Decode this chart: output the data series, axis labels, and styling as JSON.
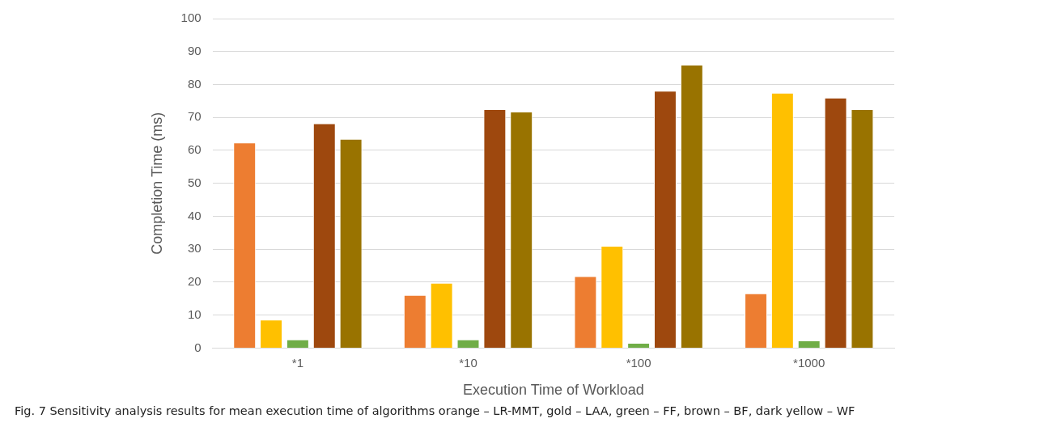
{
  "chart_data": {
    "type": "bar",
    "categories": [
      "*1",
      "*10",
      "*100",
      "*1000"
    ],
    "series": [
      {
        "color": "#ed7d31",
        "values": [
          62.4,
          16.1,
          21.8,
          16.6
        ]
      },
      {
        "color": "#ffc000",
        "values": [
          8.6,
          19.8,
          31.0,
          77.5
        ]
      },
      {
        "color": "#70ad47",
        "values": [
          2.6,
          2.6,
          1.6,
          2.3
        ]
      },
      {
        "color": "#9e480e",
        "values": [
          68.2,
          72.5,
          78.1,
          76.0
        ]
      },
      {
        "color": "#997300",
        "values": [
          63.5,
          71.8,
          86.0,
          72.5
        ]
      }
    ],
    "xlabel": "Execution Time of Workload",
    "ylabel": "Completion Time (ms)",
    "ylim": [
      0,
      100
    ],
    "yticks": [
      0,
      10,
      20,
      30,
      40,
      50,
      60,
      70,
      80,
      90,
      100
    ],
    "grid": "y",
    "annotations": [
      "Fig. 7  Sensitivity analysis results for mean execution time of algorithms orange – LR-MMT, gold – LAA, green – FF, brown – BF, dark yellow – WF"
    ]
  }
}
